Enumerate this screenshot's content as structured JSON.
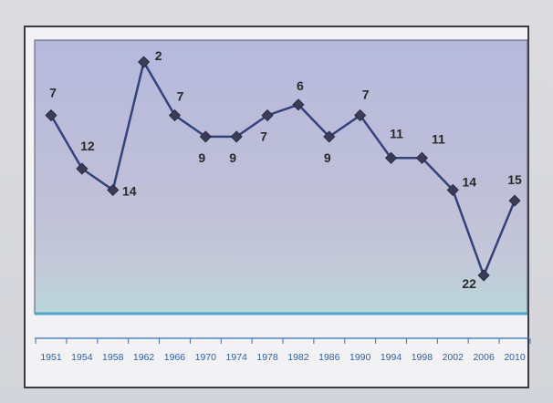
{
  "chart_data": {
    "type": "line",
    "title": "",
    "xlabel": "",
    "ylabel": "",
    "y_inverted": true,
    "grid": false,
    "legend": "none",
    "x": [
      "1951",
      "1954",
      "1958",
      "1962",
      "1966",
      "1970",
      "1974",
      "1978",
      "1982",
      "1986",
      "1990",
      "1994",
      "1998",
      "2002",
      "2006",
      "2010"
    ],
    "series": [
      {
        "values": [
          7,
          12,
          14,
          2,
          7,
          9,
          9,
          7,
          6,
          9,
          7,
          11,
          11,
          14,
          22,
          15
        ]
      }
    ],
    "data_labels": [
      "7",
      "12",
      "14",
      "2",
      "7",
      "9",
      "9",
      "7",
      "6",
      "9",
      "7",
      "11",
      "11",
      "14",
      "22",
      "15"
    ]
  },
  "colors": {
    "line": "#33427a",
    "marker": "#3a3d55",
    "tick_label": "#2c5fa8"
  }
}
